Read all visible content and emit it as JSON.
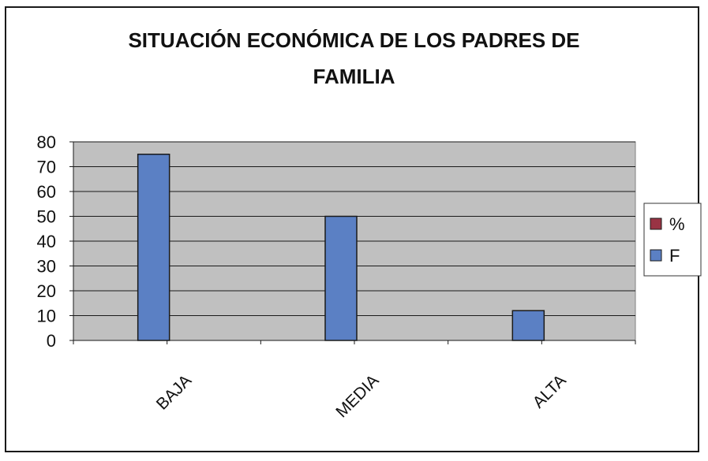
{
  "chart_data": {
    "type": "bar",
    "title_lines": [
      "SITUACIÓN ECONÓMICA DE LOS PADRES DE",
      "FAMILIA"
    ],
    "categories": [
      "BAJA",
      "MEDIA",
      "ALTA"
    ],
    "series": [
      {
        "name": "%",
        "values": [
          0,
          0,
          0
        ],
        "color": "#993344"
      },
      {
        "name": "F",
        "values": [
          75,
          50,
          12
        ],
        "color": "#5b80c4"
      }
    ],
    "yticks": [
      "0",
      "10",
      "20",
      "30",
      "40",
      "50",
      "60",
      "70",
      "80"
    ],
    "ylim": [
      0,
      80
    ],
    "grid": true,
    "plot_background": "#c0c0c0",
    "legend": {
      "position": "right",
      "entries": [
        "%",
        "F"
      ]
    }
  }
}
